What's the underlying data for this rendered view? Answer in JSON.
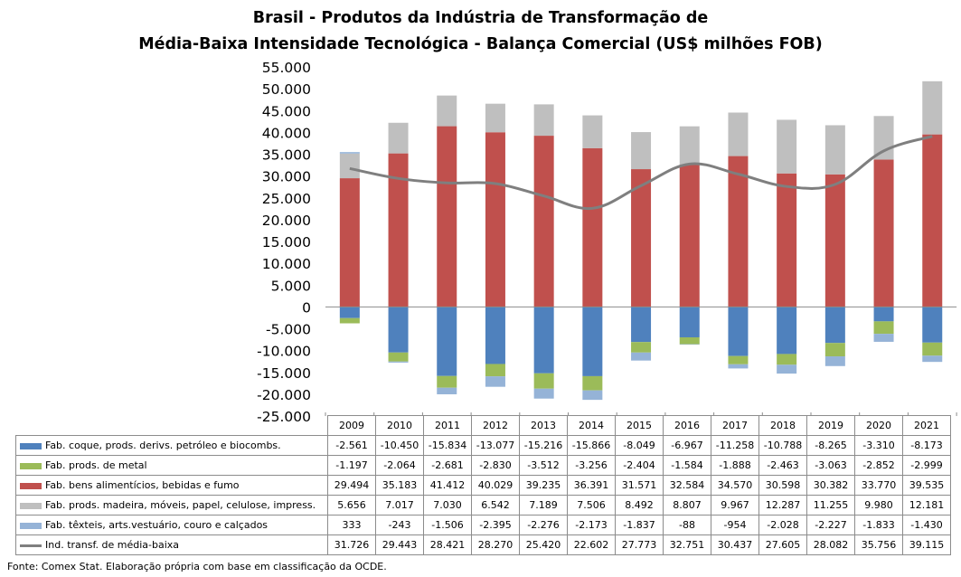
{
  "title_lines": [
    "Brasil - Produtos da Indústria de Transformação de",
    "Média-Baixa Intensidade Tecnológica - Balança Comercial (US$ milhões FOB)"
  ],
  "source": "Fonte: Comex Stat. Elaboração própria com base em classificação da OCDE.",
  "colors": {
    "coque": "#4f81bd",
    "metal": "#9bbb59",
    "alimenticios": "#c0504d",
    "madeira": "#bfbfbf",
    "texteis": "#95b3d7",
    "line": "#7f7f7f"
  },
  "chart_data": {
    "type": "bar",
    "stacked": true,
    "categories": [
      "2009",
      "2010",
      "2011",
      "2012",
      "2013",
      "2014",
      "2015",
      "2016",
      "2017",
      "2018",
      "2019",
      "2020",
      "2021"
    ],
    "ylim": [
      -25000,
      55000
    ],
    "ytick_step": 5000,
    "ytick_labels": [
      "-25.000",
      "-20.000",
      "-15.000",
      "-10.000",
      "-5.000",
      "0",
      "5.000",
      "10.000",
      "15.000",
      "20.000",
      "25.000",
      "30.000",
      "35.000",
      "40.000",
      "45.000",
      "50.000",
      "55.000"
    ],
    "legend": "table",
    "series": [
      {
        "name": "Fab. coque, prods. derivs. petróleo e biocombs.",
        "key": "coque",
        "kind": "bar",
        "values": [
          -2561,
          -10450,
          -15834,
          -13077,
          -15216,
          -15866,
          -8049,
          -6967,
          -11258,
          -10788,
          -8265,
          -3310,
          -8173
        ],
        "labels": [
          "-2.561",
          "-10.450",
          "-15.834",
          "-13.077",
          "-15.216",
          "-15.866",
          "-8.049",
          "-6.967",
          "-11.258",
          "-10.788",
          "-8.265",
          "-3.310",
          "-8.173"
        ]
      },
      {
        "name": "Fab. prods. de metal",
        "key": "metal",
        "kind": "bar",
        "values": [
          -1197,
          -2064,
          -2681,
          -2830,
          -3512,
          -3256,
          -2404,
          -1584,
          -1888,
          -2463,
          -3063,
          -2852,
          -2999
        ],
        "labels": [
          "-1.197",
          "-2.064",
          "-2.681",
          "-2.830",
          "-3.512",
          "-3.256",
          "-2.404",
          "-1.584",
          "-1.888",
          "-2.463",
          "-3.063",
          "-2.852",
          "-2.999"
        ]
      },
      {
        "name": "Fab. bens alimentícios, bebidas e fumo",
        "key": "alimenticios",
        "kind": "bar",
        "values": [
          29494,
          35183,
          41412,
          40029,
          39235,
          36391,
          31571,
          32584,
          34570,
          30598,
          30382,
          33770,
          39535
        ],
        "labels": [
          "29.494",
          "35.183",
          "41.412",
          "40.029",
          "39.235",
          "36.391",
          "31.571",
          "32.584",
          "34.570",
          "30.598",
          "30.382",
          "33.770",
          "39.535"
        ]
      },
      {
        "name": "Fab. prods. madeira, móveis, papel, celulose, impress.",
        "key": "madeira",
        "kind": "bar",
        "values": [
          5656,
          7017,
          7030,
          6542,
          7189,
          7506,
          8492,
          8807,
          9967,
          12287,
          11255,
          9980,
          12181
        ],
        "labels": [
          "5.656",
          "7.017",
          "7.030",
          "6.542",
          "7.189",
          "7.506",
          "8.492",
          "8.807",
          "9.967",
          "12.287",
          "11.255",
          "9.980",
          "12.181"
        ]
      },
      {
        "name": "Fab. têxteis, arts.vestuário, couro e calçados",
        "key": "texteis",
        "kind": "bar",
        "values": [
          333,
          -243,
          -1506,
          -2395,
          -2276,
          -2173,
          -1837,
          -88,
          -954,
          -2028,
          -2227,
          -1833,
          -1430
        ],
        "labels": [
          "333",
          "-243",
          "-1.506",
          "-2.395",
          "-2.276",
          "-2.173",
          "-1.837",
          "-88",
          "-954",
          "-2.028",
          "-2.227",
          "-1.833",
          "-1.430"
        ]
      },
      {
        "name": "Ind. transf. de média-baixa",
        "key": "line",
        "kind": "line",
        "values": [
          31726,
          29443,
          28421,
          28270,
          25420,
          22602,
          27773,
          32751,
          30437,
          27605,
          28082,
          35756,
          39115
        ],
        "labels": [
          "31.726",
          "29.443",
          "28.421",
          "28.270",
          "25.420",
          "22.602",
          "27.773",
          "32.751",
          "30.437",
          "27.605",
          "28.082",
          "35.756",
          "39.115"
        ]
      }
    ]
  }
}
